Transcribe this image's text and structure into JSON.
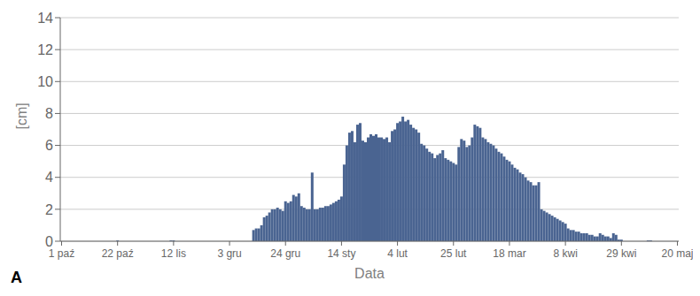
{
  "chart_data": {
    "type": "bar",
    "color": "#4a6491",
    "xlabel": "Data",
    "ylabel": "[cm]",
    "annotations": [
      "A"
    ],
    "ylim": [
      0,
      14
    ],
    "yticks": [
      0,
      2,
      4,
      6,
      8,
      10,
      12,
      14
    ],
    "grid": true,
    "categories": [
      "1 paź",
      null,
      null,
      null,
      null,
      null,
      null,
      null,
      null,
      null,
      null,
      null,
      null,
      null,
      null,
      null,
      null,
      null,
      null,
      null,
      null,
      "22 paź",
      null,
      null,
      null,
      null,
      null,
      null,
      null,
      null,
      null,
      null,
      null,
      null,
      null,
      null,
      null,
      null,
      null,
      null,
      null,
      null,
      "12 lis",
      null,
      null,
      null,
      null,
      null,
      null,
      null,
      null,
      null,
      null,
      null,
      null,
      null,
      null,
      null,
      null,
      null,
      null,
      null,
      null,
      "3 gru",
      null,
      null,
      null,
      null,
      null,
      null,
      null,
      null,
      null,
      null,
      null,
      null,
      null,
      null,
      null,
      null,
      null,
      null,
      null,
      null,
      "24 gru",
      null,
      null,
      null,
      null,
      null,
      null,
      null,
      null,
      null,
      null,
      null,
      null,
      null,
      null,
      null,
      null,
      null,
      null,
      null,
      null,
      "14 sty",
      null,
      null,
      null,
      null,
      null,
      null,
      null,
      null,
      null,
      null,
      null,
      null,
      null,
      null,
      null,
      null,
      null,
      null,
      null,
      null,
      "4 lut",
      null,
      null,
      null,
      null,
      null,
      null,
      null,
      null,
      null,
      null,
      null,
      null,
      null,
      null,
      null,
      null,
      null,
      null,
      null,
      null,
      "25 lut",
      null,
      null,
      null,
      null,
      null,
      null,
      null,
      null,
      null,
      null,
      null,
      null,
      null,
      null,
      null,
      null,
      null,
      null,
      null,
      null,
      "18 mar",
      null,
      null,
      null,
      null,
      null,
      null,
      null,
      null,
      null,
      null,
      null,
      null,
      null,
      null,
      null,
      null,
      null,
      null,
      null,
      null,
      "8 kwi",
      null,
      null,
      null,
      null,
      null,
      null,
      null,
      null,
      null,
      null,
      null,
      null,
      null,
      null,
      null,
      null,
      null,
      null,
      null,
      null,
      "29 kwi",
      null,
      null,
      null,
      null,
      null,
      null,
      null,
      null,
      null,
      null,
      null,
      null,
      null,
      null,
      null,
      null,
      null,
      null,
      null,
      null,
      "20 maj"
    ],
    "values": [
      0.0,
      0.0,
      0.0,
      0.0,
      0.0,
      0.0,
      0.0,
      0.0,
      0.0,
      0.0,
      0.0,
      0.0,
      0.0,
      0.0,
      0.0,
      0.0,
      0.0,
      0.0,
      0.0,
      0.0,
      0.0,
      0.05,
      0.0,
      0.0,
      0.0,
      0.0,
      0.0,
      0.0,
      0.0,
      0.0,
      0.0,
      0.0,
      0.0,
      0.0,
      0.0,
      0.0,
      0.0,
      0.0,
      0.0,
      0.0,
      0.0,
      0.05,
      0.05,
      0.0,
      0.0,
      0.0,
      0.0,
      0.0,
      0.0,
      0.0,
      0.0,
      0.0,
      0.0,
      0.0,
      0.0,
      0.0,
      0.0,
      0.0,
      0.0,
      0.0,
      0.0,
      0.0,
      0.0,
      0.0,
      0.0,
      0.0,
      0.0,
      0.0,
      0.0,
      0.0,
      0.0,
      0.0,
      0.7,
      0.8,
      0.8,
      1.0,
      1.5,
      1.6,
      1.8,
      2.0,
      2.0,
      2.1,
      2.0,
      1.9,
      2.5,
      2.4,
      2.5,
      2.9,
      2.8,
      3.0,
      2.2,
      2.1,
      2.0,
      2.0,
      4.3,
      2.0,
      2.0,
      2.1,
      2.1,
      2.2,
      2.2,
      2.3,
      2.4,
      2.5,
      2.6,
      2.8,
      4.8,
      6.0,
      6.8,
      6.9,
      6.2,
      7.3,
      7.4,
      6.3,
      6.2,
      6.5,
      6.7,
      6.6,
      6.7,
      6.5,
      6.5,
      6.4,
      6.5,
      6.2,
      6.9,
      7.0,
      7.4,
      7.5,
      7.8,
      7.5,
      7.6,
      7.3,
      7.1,
      7.0,
      6.8,
      6.1,
      6.0,
      5.8,
      5.6,
      5.5,
      5.2,
      5.4,
      5.5,
      5.7,
      5.2,
      5.1,
      5.0,
      4.9,
      4.8,
      5.9,
      6.4,
      6.3,
      5.9,
      6.0,
      6.5,
      7.3,
      7.2,
      7.1,
      6.5,
      6.4,
      6.2,
      6.1,
      6.0,
      5.8,
      5.6,
      5.5,
      5.3,
      5.1,
      5.0,
      4.8,
      4.6,
      4.5,
      4.3,
      4.2,
      4.0,
      3.8,
      3.7,
      3.5,
      3.5,
      3.7,
      2.0,
      1.9,
      1.8,
      1.7,
      1.6,
      1.5,
      1.4,
      1.3,
      1.2,
      1.1,
      0.8,
      0.7,
      0.7,
      0.6,
      0.6,
      0.5,
      0.5,
      0.5,
      0.4,
      0.4,
      0.3,
      0.3,
      0.5,
      0.4,
      0.3,
      0.3,
      0.2,
      0.5,
      0.4,
      0.1,
      0.1,
      0.0,
      0.0,
      0.0,
      0.0,
      0.0,
      0.0,
      0.0,
      0.0,
      0.0,
      0.05,
      0.05,
      0.0,
      0.0,
      0.0,
      0.0,
      0.0,
      0.0,
      0.0,
      0.0,
      0.0,
      0.0
    ]
  }
}
